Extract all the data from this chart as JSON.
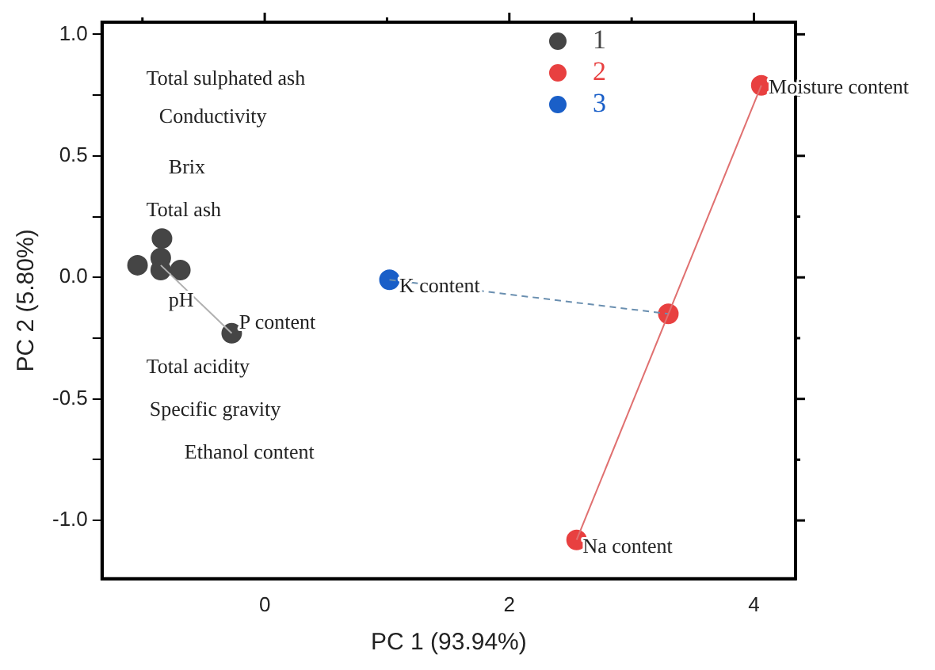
{
  "chart_data": {
    "type": "scatter",
    "xlabel": "PC 1 (93.94%)",
    "ylabel": "PC 2 (5.80%)",
    "xlim": [
      -1.33,
      4.34
    ],
    "ylim": [
      -1.24,
      1.05
    ],
    "xticks": [
      {
        "value": -1,
        "label": null
      },
      0,
      {
        "value": 1,
        "label": null
      },
      2,
      {
        "value": 3,
        "label": null
      },
      4
    ],
    "yticks": [
      {
        "value": -1,
        "label": "-1.0"
      },
      {
        "value": -0.75,
        "label": null
      },
      {
        "value": -0.5,
        "label": "-0.5"
      },
      {
        "value": -0.25,
        "label": null
      },
      {
        "value": 0,
        "label": "0.0"
      },
      {
        "value": 0.25,
        "label": null
      },
      {
        "value": 0.5,
        "label": "0.5"
      },
      {
        "value": 0.75,
        "label": null
      },
      {
        "value": 1,
        "label": "1.0"
      }
    ],
    "grid": false,
    "legend": "top right",
    "marker": "circle",
    "series": [
      {
        "type": "line",
        "color": "#b0b0b0",
        "x": [
          -0.85,
          -0.27
        ],
        "values": [
          0.05,
          -0.23
        ],
        "marker": "none",
        "line_style": "solid"
      },
      {
        "type": "line",
        "color": "#e07070",
        "x": [
          4.06,
          2.55
        ],
        "values": [
          0.79,
          -1.08
        ],
        "marker": "none",
        "line_style": "solid"
      },
      {
        "type": "line",
        "color": "#6a8fb0",
        "x": [
          1.02,
          3.3
        ],
        "values": [
          -0.01,
          -0.15
        ],
        "marker": "none",
        "line_style": "dashed"
      },
      {
        "name": "1",
        "color": "#454545",
        "x": [
          -0.84,
          -1.04,
          -0.85,
          -0.85,
          -0.69,
          -0.27
        ],
        "values": [
          0.16,
          0.05,
          0.08,
          0.03,
          0.03,
          -0.23
        ]
      },
      {
        "name": "2",
        "color": "#e84040",
        "x": [
          4.06,
          3.3,
          2.55
        ],
        "values": [
          0.79,
          -0.15,
          -1.08
        ]
      },
      {
        "name": "3",
        "color": "#1a5fc8",
        "x": [
          1.02
        ],
        "values": [
          -0.01
        ]
      }
    ],
    "annotations": [
      "Total sulphated ash",
      "Conductivity",
      "Brix",
      "Total ash",
      "pH",
      "Total acidity",
      "Specific gravity",
      "Ethanol content",
      {
        "text": "P content",
        "x": -0.21,
        "y": -0.19
      },
      {
        "text": "K content",
        "x": 1.1,
        "y": -0.04
      },
      {
        "text": "Moisture content",
        "x": 4.12,
        "y": 0.78
      },
      {
        "text": "Na content",
        "x": 2.6,
        "y": -1.11
      }
    ]
  }
}
